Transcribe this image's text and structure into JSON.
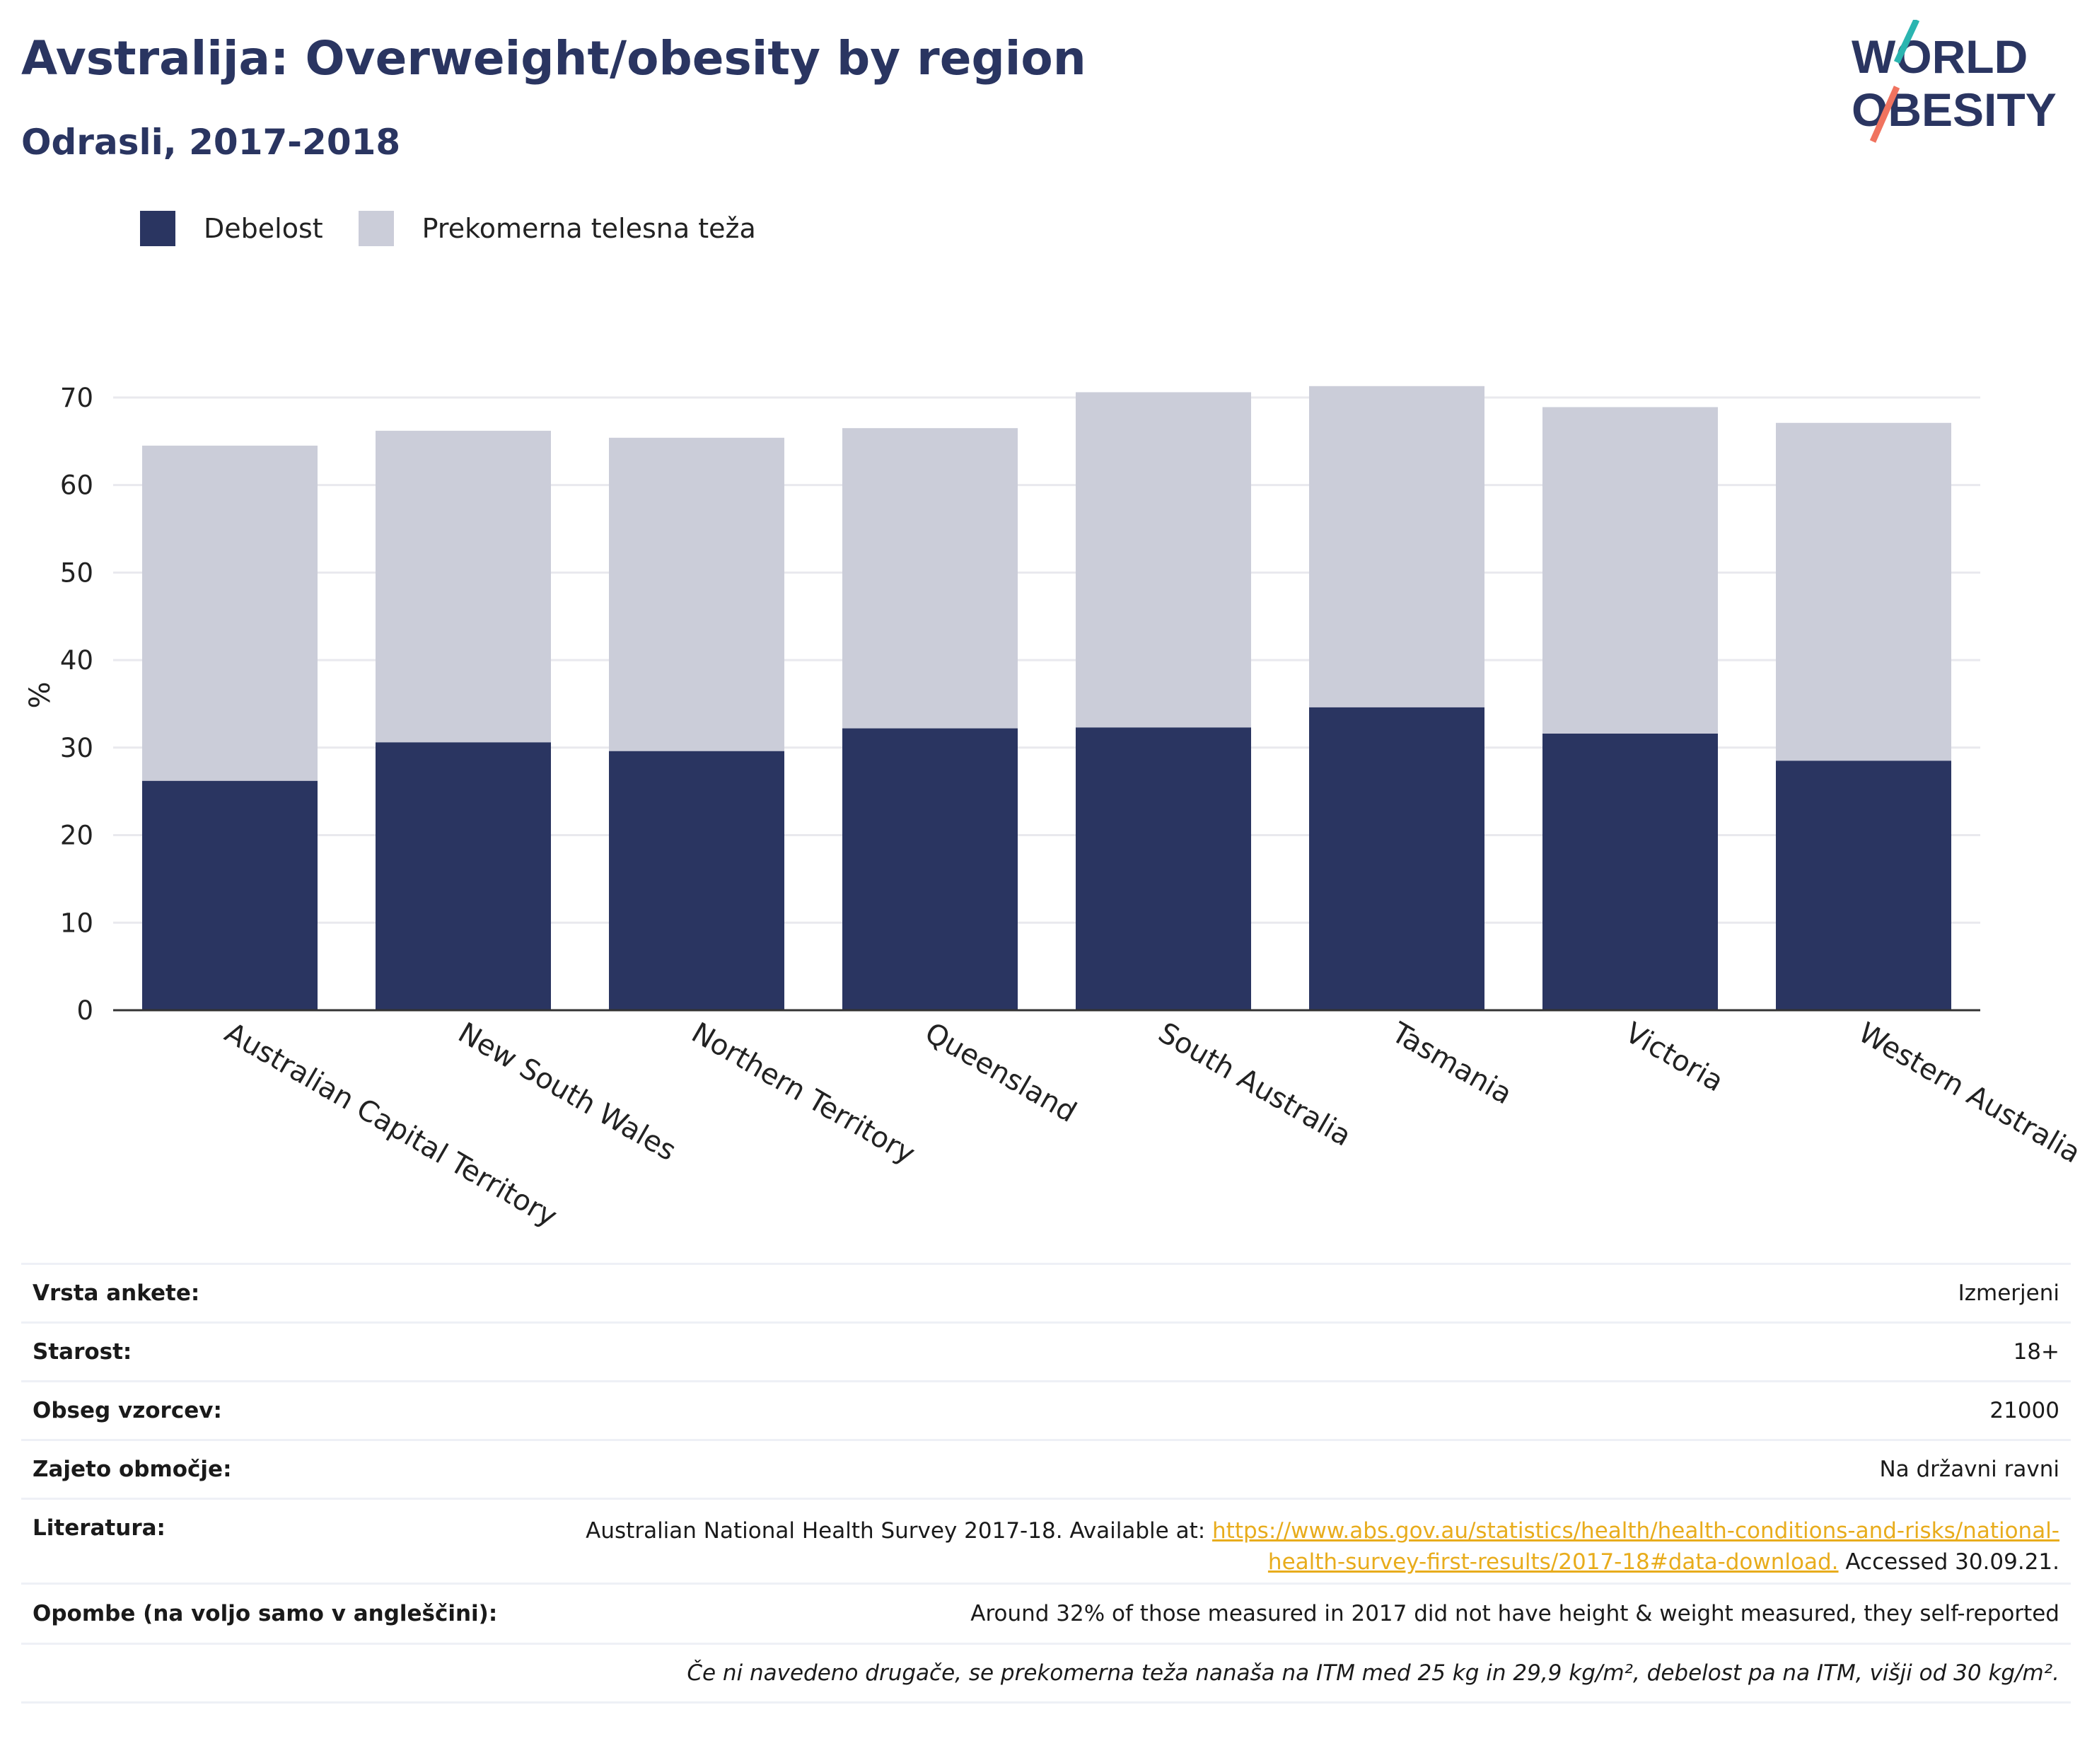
{
  "header": {
    "title": "Avstralija: Overweight/obesity by region",
    "subtitle": "Odrasli, 2017-2018",
    "logo_line1": "WORLD",
    "logo_line2": "OBESITY"
  },
  "colors": {
    "obesity": "#2a3561",
    "overweight": "#cbcdd9",
    "title": "#2a3561",
    "link": "#e8ac1c"
  },
  "legend": [
    {
      "label": "Debelost",
      "color": "#2a3561"
    },
    {
      "label": "Prekomerna telesna teža",
      "color": "#cbcdd9"
    }
  ],
  "chart_data": {
    "type": "bar",
    "stacked": true,
    "ylabel": "%",
    "ylim": [
      0,
      75
    ],
    "yticks": [
      0,
      10,
      20,
      30,
      40,
      50,
      60,
      70
    ],
    "grid": true,
    "legend_position": "top-left",
    "categories": [
      "Australian Capital Territory",
      "New South Wales",
      "Northern Territory",
      "Queensland",
      "South Australia",
      "Tasmania",
      "Victoria",
      "Western Australia"
    ],
    "series": [
      {
        "name": "Debelost",
        "values": [
          26.2,
          30.6,
          29.6,
          32.2,
          32.3,
          34.6,
          31.6,
          28.5
        ]
      },
      {
        "name": "Prekomerna telesna teža",
        "values": [
          38.3,
          35.6,
          35.8,
          34.3,
          38.3,
          36.7,
          37.3,
          38.6
        ]
      }
    ]
  },
  "info": {
    "rows": [
      {
        "key": "Vrsta ankete:",
        "value": "Izmerjeni"
      },
      {
        "key": "Starost:",
        "value": "18+"
      },
      {
        "key": "Obseg vzorcev:",
        "value": "21000"
      },
      {
        "key": "Zajeto območje:",
        "value": "Na državni ravni"
      }
    ],
    "literature_key": "Literatura:",
    "literature_prefix": "Australian National Health Survey 2017-18. Available at: ",
    "literature_link_1": "https://www.abs.gov.au/statistics/health/health-conditions-and-risks/national-",
    "literature_link_2": "health-survey-first-results/2017-18#data-download.",
    "literature_suffix": " Accessed 30.09.21.",
    "notes_key": "Opombe (na voljo samo v angleščini):",
    "notes_value": "Around 32% of those measured in 2017 did not have height & weight measured, they self-reported",
    "definition": "Če ni navedeno drugače, se prekomerna teža nanaša na ITM med 25 kg in 29,9 kg/m², debelost pa na ITM, višji od 30 kg/m²."
  }
}
